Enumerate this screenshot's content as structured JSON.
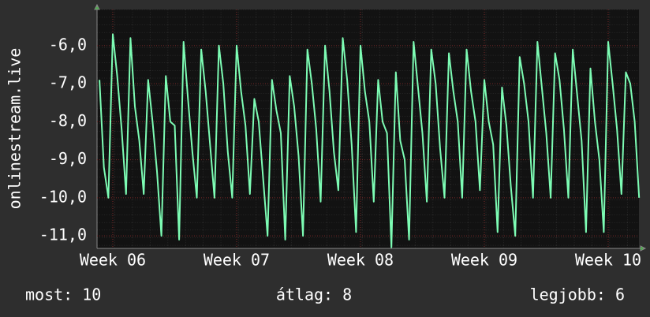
{
  "chart_data": {
    "type": "line",
    "ylabel": "onlinestream.live",
    "color": "#7dfcb4",
    "x": [
      -0.75,
      -0.5,
      -0.25,
      0,
      0.25,
      0.5,
      0.75,
      1,
      1.25,
      1.5,
      1.75,
      2,
      2.25,
      2.5,
      2.75,
      3,
      3.25,
      3.5,
      3.75,
      4,
      4.25,
      4.5,
      4.75,
      5,
      5.25,
      5.5,
      5.75,
      6,
      6.25,
      6.5,
      6.75,
      7,
      7.25,
      7.5,
      7.75,
      8,
      8.25,
      8.5,
      8.75,
      9,
      9.25,
      9.5,
      9.75,
      10,
      10.25,
      10.5,
      10.75,
      11,
      11.25,
      11.5,
      11.75,
      12,
      12.25,
      12.5,
      12.75,
      13,
      13.25,
      13.5,
      13.75,
      14,
      14.25,
      14.5,
      14.75,
      15,
      15.25,
      15.5,
      15.75,
      16,
      16.25,
      16.5,
      16.75,
      17,
      17.25,
      17.5,
      17.75,
      18,
      18.25,
      18.5,
      18.75,
      19,
      19.25,
      19.5,
      19.75,
      20,
      20.25,
      20.5,
      20.75,
      21,
      21.25,
      21.5,
      21.75,
      22,
      22.25,
      22.5,
      22.75,
      23,
      23.25,
      23.5,
      23.75,
      24,
      24.25,
      24.5,
      24.75,
      25,
      25.25,
      25.5,
      25.75,
      26,
      26.25,
      26.5,
      26.75,
      27,
      27.25,
      27.5,
      27.75,
      28,
      28.25,
      28.5,
      28.75,
      29,
      29.25,
      29.5,
      29.75
    ],
    "values": [
      -6.9,
      -9.2,
      -10.0,
      -5.7,
      -6.8,
      -8.2,
      -9.9,
      -5.8,
      -7.6,
      -8.5,
      -9.9,
      -6.9,
      -8.0,
      -9.3,
      -11.0,
      -6.8,
      -8.0,
      -8.1,
      -11.1,
      -5.9,
      -7.4,
      -8.8,
      -10.0,
      -6.1,
      -7.2,
      -8.6,
      -10.0,
      -6.0,
      -7.0,
      -8.8,
      -10.0,
      -6.0,
      -7.2,
      -8.1,
      -9.9,
      -7.4,
      -8.0,
      -9.5,
      -11.0,
      -6.9,
      -7.7,
      -8.3,
      -11.1,
      -6.8,
      -7.6,
      -8.9,
      -11.0,
      -6.1,
      -7.0,
      -8.2,
      -10.1,
      -6.0,
      -7.2,
      -8.8,
      -9.8,
      -5.8,
      -6.9,
      -8.6,
      -10.9,
      -6.0,
      -7.2,
      -8.0,
      -10.1,
      -6.9,
      -8.0,
      -8.3,
      -11.3,
      -6.7,
      -8.5,
      -9.0,
      -11.1,
      -5.9,
      -7.1,
      -8.3,
      -10.1,
      -6.1,
      -7.0,
      -8.7,
      -10.0,
      -6.2,
      -7.2,
      -8.0,
      -10.0,
      -6.1,
      -7.2,
      -8.0,
      -9.8,
      -6.9,
      -8.0,
      -8.6,
      -10.9,
      -7.1,
      -8.1,
      -9.7,
      -11.0,
      -6.3,
      -7.0,
      -8.0,
      -10.0,
      -5.9,
      -7.1,
      -8.3,
      -10.0,
      -6.2,
      -6.9,
      -8.2,
      -10.0,
      -6.1,
      -7.3,
      -8.5,
      -10.9,
      -6.6,
      -8.0,
      -9.0,
      -10.9,
      -5.9,
      -7.0,
      -8.2,
      -9.9,
      -6.7,
      -7.0,
      -8.0,
      -10.0
    ],
    "xlim": [
      -0.89,
      29.74
    ],
    "xticks": [
      {
        "value": 0,
        "label": "Week 06"
      },
      {
        "value": 7,
        "label": "Week 07"
      },
      {
        "value": 14,
        "label": "Week 08"
      },
      {
        "value": 21,
        "label": "Week 09"
      },
      {
        "value": 28,
        "label": "Week 10"
      }
    ],
    "ylim": [
      -11.33,
      -5.05
    ],
    "yticks": [
      {
        "value": -6,
        "label": "-6,0"
      },
      {
        "value": -7,
        "label": "-7,0"
      },
      {
        "value": -8,
        "label": "-8,0"
      },
      {
        "value": -9,
        "label": "-9,0"
      },
      {
        "value": -10,
        "label": "-10,0"
      },
      {
        "value": -11,
        "label": "-11,0"
      }
    ],
    "grid": true,
    "footer": [
      "most: 10",
      "átlag: 8",
      "legjobb: 6"
    ]
  }
}
